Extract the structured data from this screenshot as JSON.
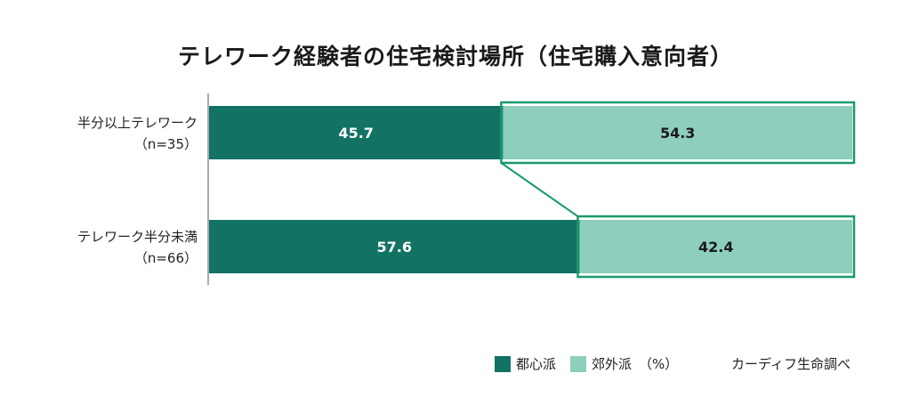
{
  "chart_data": {
    "type": "bar",
    "orientation": "horizontal",
    "stacked": true,
    "title": "テレワーク経験者の住宅検討場所（住宅購入意向者）",
    "categories": [
      {
        "label": "半分以上テレワーク",
        "sublabel": "（n=35）"
      },
      {
        "label": "テレワーク半分未満",
        "sublabel": "（n=66）"
      }
    ],
    "series": [
      {
        "name": "都心派",
        "values": [
          45.7,
          57.6
        ],
        "color": "#127264"
      },
      {
        "name": "郊外派",
        "values": [
          54.3,
          42.4
        ],
        "color": "#8ecebd"
      }
    ],
    "xlim": [
      0,
      100
    ],
    "highlight_series": "郊外派",
    "highlight_color": "#1a9a6a",
    "unit": "（%）",
    "legend_position": "bottom-right"
  },
  "source": "カーディフ生命調べ"
}
